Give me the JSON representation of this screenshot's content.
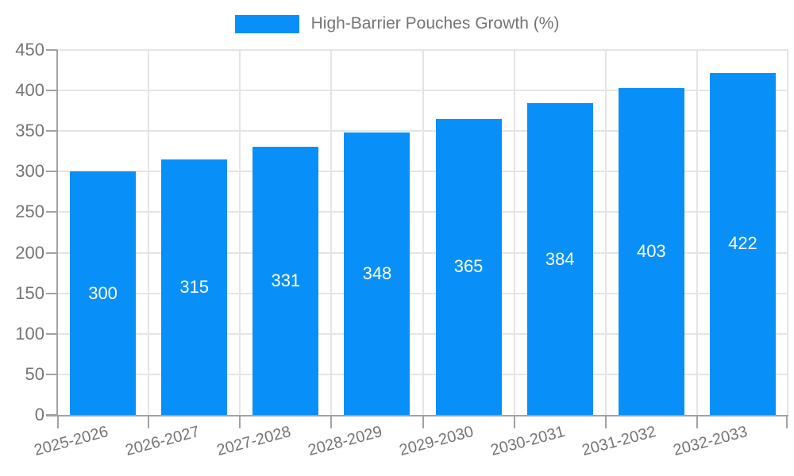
{
  "chart_data": {
    "type": "bar",
    "title": "High-Barrier Pouches Growth (%)",
    "categories": [
      "2025-2026",
      "2026-2027",
      "2027-2028",
      "2028-2029",
      "2029-2030",
      "2030-2031",
      "2031-2032",
      "2032-2033"
    ],
    "values": [
      300,
      315,
      331,
      348,
      365,
      384,
      403,
      422
    ],
    "xlabel": "",
    "ylabel": "",
    "ylim": [
      0,
      450
    ],
    "yticks": [
      0,
      50,
      100,
      150,
      200,
      250,
      300,
      350,
      400,
      450
    ],
    "grid": true,
    "legend_position": "top-center",
    "legend_entries": [
      "High-Barrier Pouches Growth (%)"
    ],
    "x_tick_rotation_deg": -15,
    "value_labels_position": "inside-middle"
  },
  "colors": {
    "bar": "#0990F8",
    "value_label": "#FFFFFF",
    "axis": "#A2A2A2",
    "gridline": "#E4E4E4",
    "tick_label": "#757575",
    "legend_text": "#757575",
    "background": "#FFFFFF"
  }
}
